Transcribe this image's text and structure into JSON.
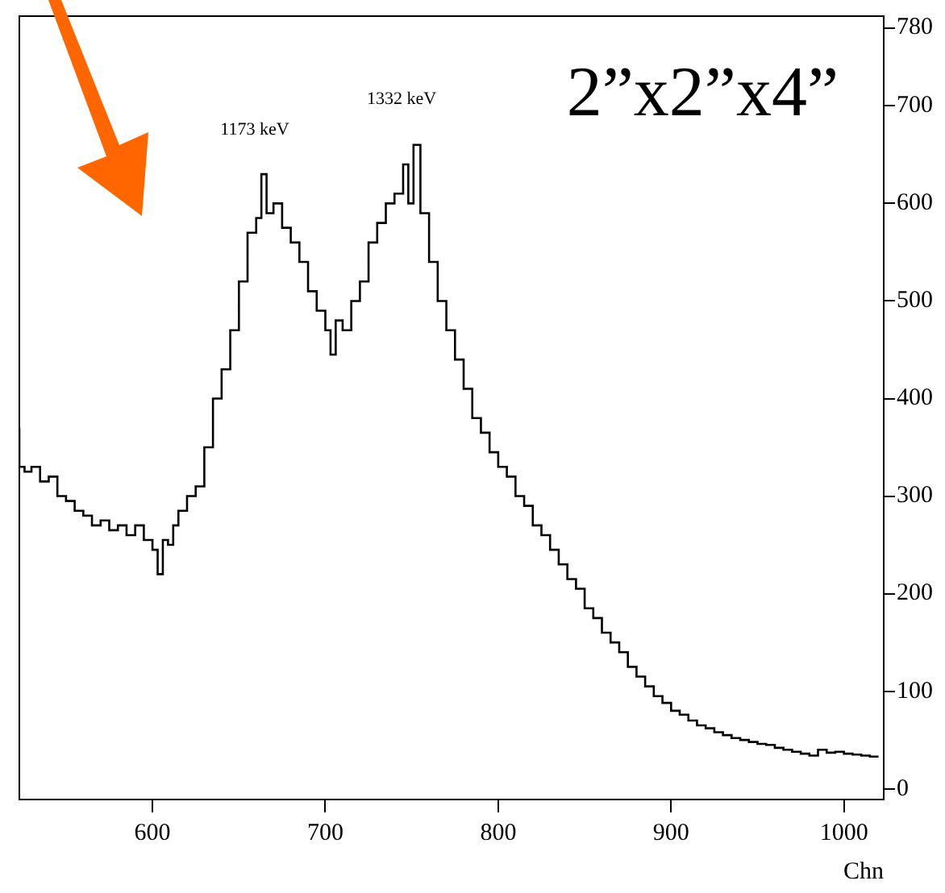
{
  "chart_data": {
    "type": "step",
    "xlabel": "Chn",
    "x": [
      523,
      526,
      530,
      535,
      540,
      545,
      550,
      555,
      560,
      565,
      570,
      575,
      580,
      585,
      590,
      595,
      600,
      603,
      606,
      609,
      612,
      615,
      620,
      625,
      630,
      635,
      640,
      645,
      650,
      655,
      660,
      663,
      666,
      670,
      675,
      680,
      685,
      690,
      695,
      700,
      703,
      706,
      710,
      715,
      720,
      725,
      730,
      735,
      740,
      745,
      748,
      751,
      755,
      760,
      765,
      770,
      775,
      780,
      785,
      790,
      795,
      800,
      805,
      810,
      815,
      820,
      825,
      830,
      835,
      840,
      845,
      850,
      855,
      860,
      865,
      870,
      875,
      880,
      885,
      890,
      895,
      900,
      905,
      910,
      915,
      920,
      925,
      930,
      935,
      940,
      945,
      950,
      955,
      960,
      965,
      970,
      975,
      980,
      985,
      990,
      995,
      1000,
      1005,
      1010,
      1015,
      1020
    ],
    "values": [
      370,
      330,
      325,
      330,
      315,
      320,
      300,
      295,
      285,
      280,
      270,
      275,
      265,
      270,
      260,
      270,
      255,
      245,
      220,
      255,
      250,
      270,
      285,
      300,
      310,
      350,
      400,
      430,
      470,
      520,
      570,
      585,
      630,
      590,
      600,
      575,
      560,
      540,
      510,
      490,
      470,
      445,
      480,
      470,
      500,
      520,
      560,
      580,
      600,
      610,
      640,
      600,
      660,
      590,
      540,
      500,
      470,
      440,
      410,
      380,
      365,
      345,
      330,
      320,
      300,
      290,
      270,
      260,
      245,
      230,
      215,
      205,
      185,
      175,
      160,
      150,
      140,
      125,
      115,
      105,
      95,
      88,
      80,
      76,
      70,
      65,
      62,
      58,
      55,
      52,
      50,
      48,
      46,
      45,
      42,
      40,
      38,
      36,
      34,
      40,
      37,
      38,
      36,
      35,
      34,
      33
    ],
    "color": "#000000",
    "xlim": [
      523,
      1023
    ],
    "xticks": [
      600,
      700,
      800,
      900,
      1000
    ],
    "ylim": [
      -11,
      792
    ],
    "yticks": [
      0,
      100,
      200,
      300,
      400,
      500,
      600,
      700,
      780
    ],
    "annotations": [
      "1173 keV",
      "1332 keV",
      "2”x2”x4”"
    ],
    "grid": false,
    "legend": false
  }
}
